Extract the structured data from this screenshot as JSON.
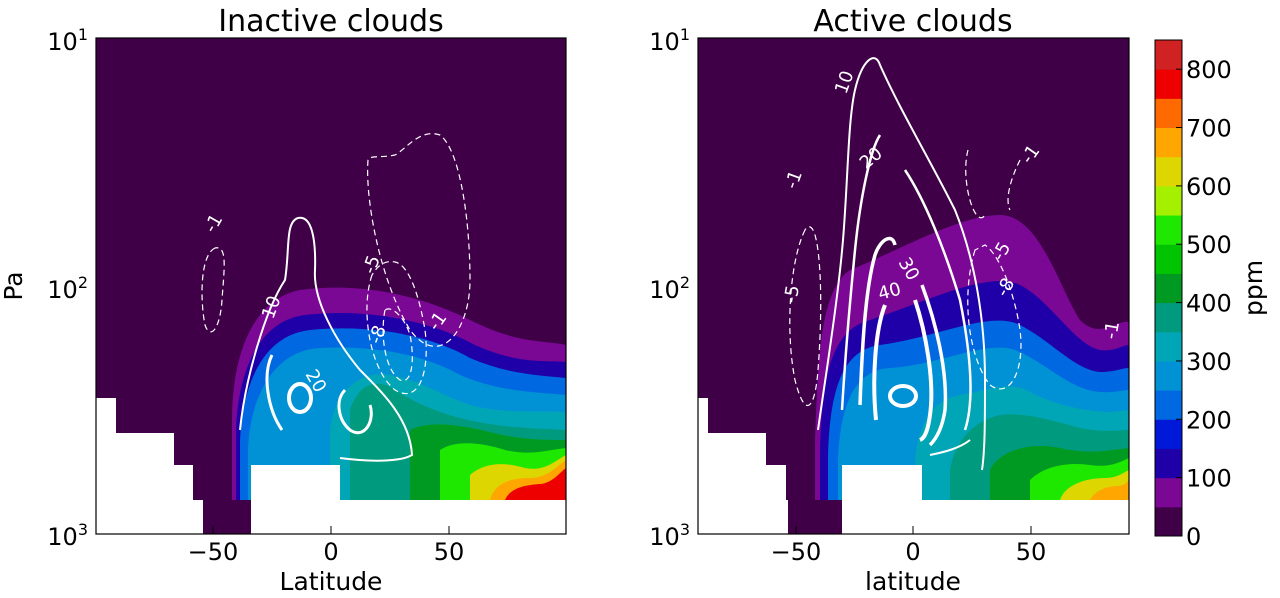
{
  "chart_data": [
    {
      "type": "contour",
      "title": "Inactive clouds",
      "xlabel": "Latitude",
      "ylabel": "Pa",
      "xlim": [
        -90,
        90
      ],
      "ylim": [
        1000,
        10
      ],
      "yscale": "log",
      "x_ticks": [
        "−50",
        "0",
        "50"
      ],
      "y_ticks": [
        {
          "base": "10",
          "exp": "1"
        },
        {
          "base": "10",
          "exp": "2"
        },
        {
          "base": "10",
          "exp": "3"
        }
      ],
      "filled_field": "water vapour mixing ratio (ppm), max ~800 near 70-90N at ~600 Pa",
      "contour_labels": [
        "-1",
        "-5",
        "-8",
        "-1",
        "10",
        "20"
      ]
    },
    {
      "type": "contour",
      "title": "Active clouds",
      "xlabel": "latitude",
      "ylabel": "",
      "xlim": [
        -90,
        90
      ],
      "ylim": [
        1000,
        10
      ],
      "yscale": "log",
      "x_ticks": [
        "−50",
        "0",
        "50"
      ],
      "y_ticks": [
        {
          "base": "10",
          "exp": "1"
        },
        {
          "base": "10",
          "exp": "2"
        },
        {
          "base": "10",
          "exp": "3"
        }
      ],
      "filled_field": "water vapour mixing ratio (ppm), extending higher (to ~50 Pa) than inactive case",
      "contour_labels": [
        "10",
        "20",
        "30",
        "40",
        "-1",
        "-5",
        "-1",
        "-5",
        "-8",
        "-1"
      ]
    }
  ],
  "colorbar": {
    "label": "ppm",
    "ticks": [
      "0",
      "100",
      "200",
      "300",
      "400",
      "500",
      "600",
      "700",
      "800"
    ],
    "levels": [
      0,
      50,
      100,
      150,
      200,
      250,
      300,
      350,
      400,
      450,
      500,
      550,
      600,
      650,
      700,
      750,
      800,
      850
    ],
    "colors": [
      "#3f0048",
      "#7b0795",
      "#1f00a8",
      "#0018d8",
      "#0068e0",
      "#0092d5",
      "#00a6b5",
      "#009a7e",
      "#009a22",
      "#00c400",
      "#1ee800",
      "#a4f000",
      "#ddd600",
      "#ffa700",
      "#ff6a00",
      "#ee0000",
      "#d02222",
      "#c87070"
    ]
  }
}
